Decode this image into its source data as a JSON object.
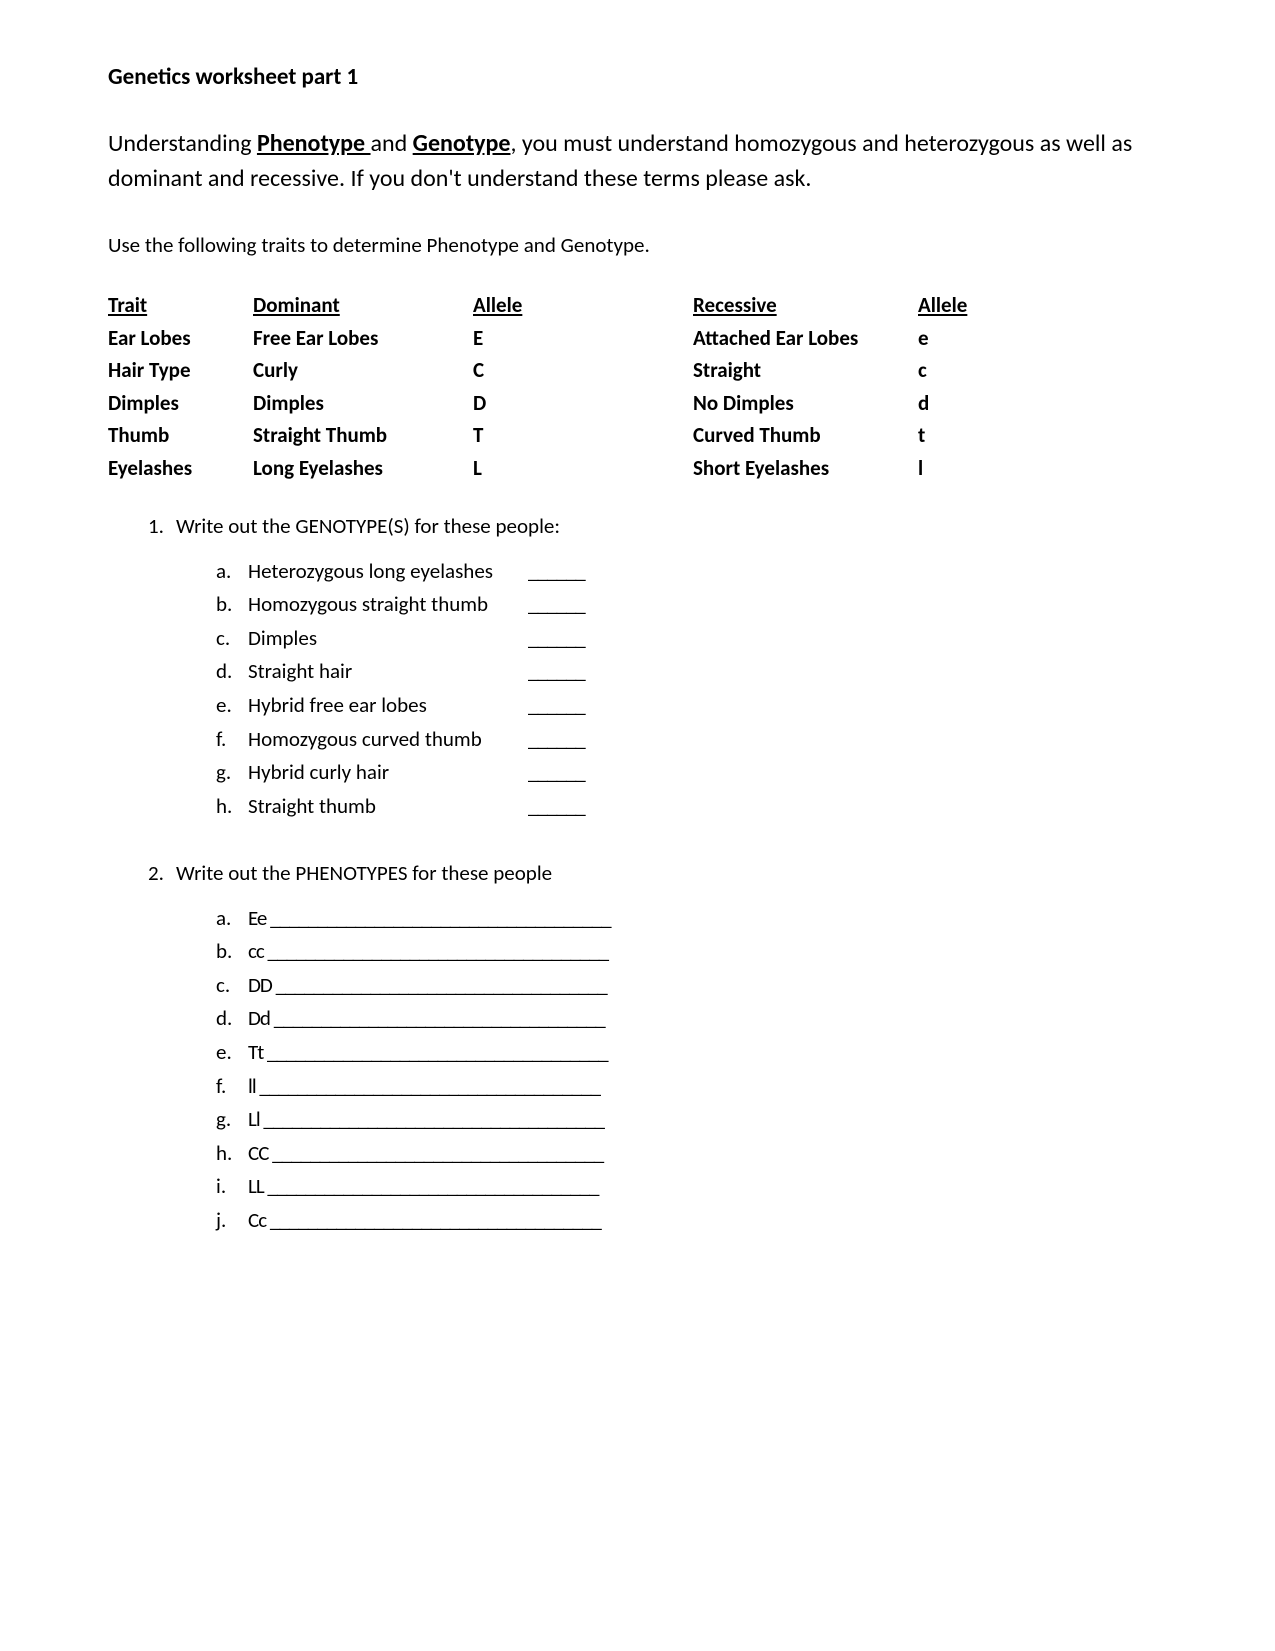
{
  "title": "Genetics worksheet part 1",
  "intro_pre": "Understanding ",
  "intro_term1": "Phenotype ",
  "intro_mid1": "and ",
  "intro_term2": "Genotype",
  "intro_post": ", you must understand homozygous and heterozygous as well as dominant and recessive.  If you don't understand these terms please ask.",
  "instruction": "Use the following traits to determine Phenotype and Genotype.",
  "table": {
    "headers": {
      "c1": "Trait",
      "c2": "Dominant",
      "c3": " Allele",
      "c4": "Recessive",
      "c5": "Allele"
    },
    "rows": [
      {
        "c1": "Ear Lobes",
        "c2": "Free Ear Lobes",
        "c3": "E",
        "c4": "Attached Ear Lobes",
        "c5": "e"
      },
      {
        "c1": "Hair Type",
        "c2": "Curly",
        "c3": "C",
        "c4": "Straight",
        "c5": "c"
      },
      {
        "c1": "Dimples",
        "c2": "Dimples",
        "c3": "D",
        "c4": "No Dimples",
        "c5": "d"
      },
      {
        "c1": "Thumb",
        "c2": "Straight Thumb",
        "c3": "T",
        "c4": "Curved Thumb",
        "c5": "t"
      },
      {
        "c1": "Eyelashes",
        "c2": "Long Eyelashes",
        "c3": "L",
        "c4": "Short Eyelashes",
        "c5": "l"
      }
    ]
  },
  "q1": {
    "num": "1.",
    "text": "Write out the GENOTYPE(S) for these people:",
    "items": [
      {
        "letter": "a.",
        "text": "Heterozygous long eyelashes",
        "blank": "______"
      },
      {
        "letter": "b.",
        "text": "Homozygous straight thumb",
        "blank": "______"
      },
      {
        "letter": "c.",
        "text": "Dimples",
        "blank": "______"
      },
      {
        "letter": "d.",
        "text": "Straight hair",
        "blank": "______"
      },
      {
        "letter": "e.",
        "text": "Hybrid free ear lobes",
        "blank": "______"
      },
      {
        "letter": "f.",
        "text": "Homozygous curved thumb",
        "blank": "______"
      },
      {
        "letter": "g.",
        "text": "Hybrid curly hair",
        "blank": "______"
      },
      {
        "letter": "h.",
        "text": "Straight thumb",
        "blank": "______"
      }
    ]
  },
  "q2": {
    "num": "2.",
    "text": "Write out the PHENOTYPES for these people",
    "items": [
      {
        "letter": "a.",
        "text": "Ee ____________________________________"
      },
      {
        "letter": "b.",
        "text": "cc ____________________________________"
      },
      {
        "letter": "c.",
        "text": "DD ___________________________________"
      },
      {
        "letter": "d.",
        "text": "Dd ___________________________________"
      },
      {
        "letter": "e.",
        "text": "Tt ____________________________________"
      },
      {
        "letter": "f.",
        "text": "ll ____________________________________"
      },
      {
        "letter": "g.",
        "text": "Ll ____________________________________"
      },
      {
        "letter": "h.",
        "text": "CC ___________________________________"
      },
      {
        "letter": "i.",
        "text": "LL ___________________________________"
      },
      {
        "letter": "j.",
        "text": "Cc ___________________________________"
      }
    ]
  }
}
